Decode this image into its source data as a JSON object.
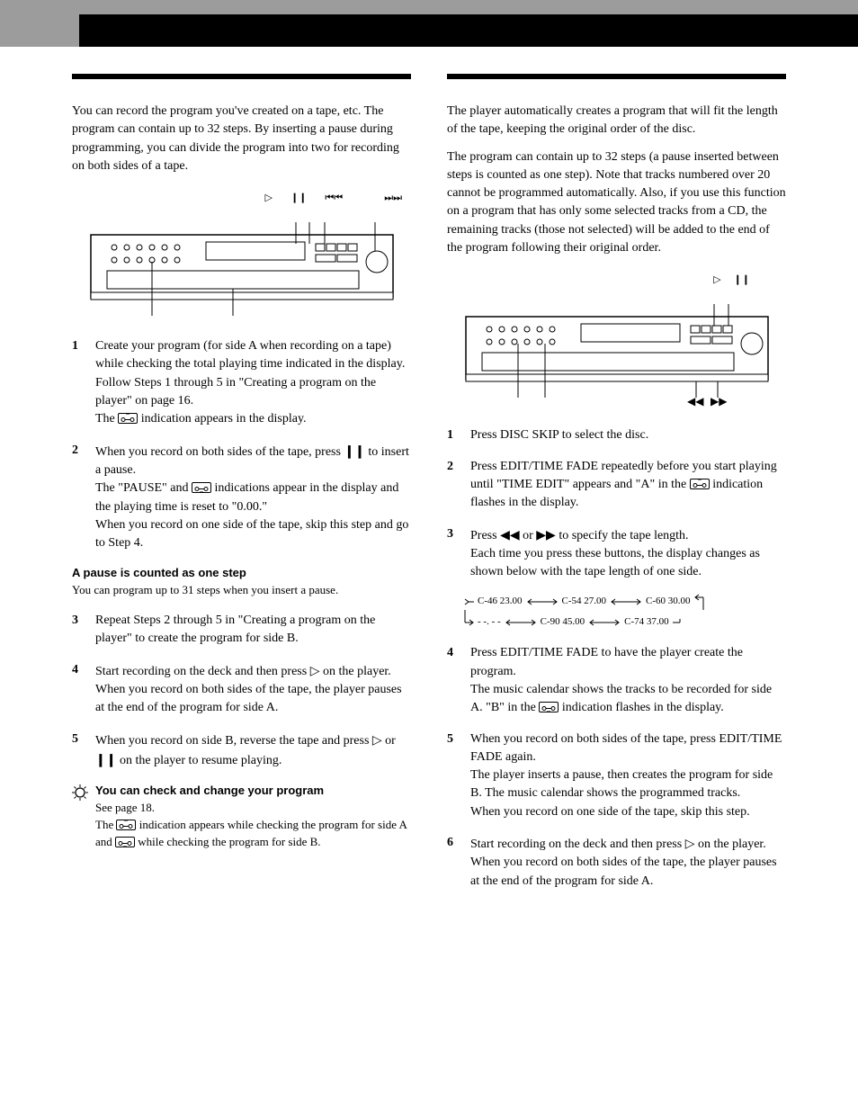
{
  "section_header_bg": "#000000",
  "left": {
    "intro": "You can record the program you've created on a tape, etc. The program can contain up to 32 steps.\nBy inserting a pause during programming, you can divide the program into two for recording on both sides of a tape.",
    "steps": [
      {
        "n": "1",
        "lines": [
          "Create your program (for side A when recording on a tape) while checking the total playing time indicated in the display.",
          "Follow Steps 1 through 5 in \"Creating a program on the player\" on page 16.",
          "The [TAPE_A] indication appears in the display."
        ]
      },
      {
        "n": "2",
        "lines": [
          "When you record on both sides of the tape, press [PAUSE] to insert a pause.",
          "The \"PAUSE\" and [TAPE_B] indications appear in the display and the playing time is reset to \"0.00.\"",
          "When you record on one side of the tape, skip this step and go to Step 4."
        ]
      },
      {
        "n": "",
        "note_head": "A pause is counted as one step",
        "note_body": "You can program up to 31 steps when you insert a pause."
      },
      {
        "n": "3",
        "lines": [
          "Repeat Steps 2 through 5 in \"Creating a program on the player\" to create the program for side B."
        ]
      },
      {
        "n": "4",
        "lines": [
          "Start recording on the deck and then press [PLAY] on the player.",
          "When you record on both sides of the tape, the player pauses at the end of the program for side A."
        ]
      },
      {
        "n": "5",
        "lines": [
          "When you record on side B, reverse the tape and press [PLAY] or [PAUSE] on the player to resume playing."
        ]
      }
    ],
    "tip_head": "You can check and change your program",
    "tip_lines": [
      "See page 18.",
      "The [TAPE_A] indication appears while checking the program for side A and [TAPE_B] while checking the program for side B."
    ]
  },
  "right": {
    "intro1": "The player automatically creates a program that will fit the length of the tape, keeping the original order of the disc.",
    "intro2": "The program can contain up to 32 steps (a pause inserted between steps is counted as one step).\nNote that tracks numbered over 20 cannot be programmed automatically. Also, if you use this function on a program that has only some selected tracks from a CD, the remaining tracks (those not selected) will be added to the end of  the program following their original order.",
    "steps": [
      {
        "n": "1",
        "lines": [
          "Press DISC SKIP to select the disc."
        ]
      },
      {
        "n": "2",
        "lines": [
          "Press EDIT/TIME FADE repeatedly before you start playing until \"TIME EDIT\" appears and \"A\" in the [TAPE_A] indication flashes in the display."
        ]
      },
      {
        "n": "3",
        "lines": [
          "Press [REW] or [FF] to specify the tape length.",
          "Each time you press these buttons, the display changes as shown below with the tape length of one side."
        ]
      },
      {
        "n": "4",
        "lines": [
          "Press EDIT/TIME FADE to have the player create the program.",
          "The music calendar shows the tracks to be recorded for side A. \"B\" in the [TAPE_B] indication flashes in the display."
        ]
      },
      {
        "n": "5",
        "lines": [
          "When you record on both sides of the tape, press EDIT/TIME FADE again.",
          "The player inserts a pause, then creates the program for side B. The music calendar shows the programmed tracks.",
          "When you record on one side of the tape, skip this step."
        ]
      },
      {
        "n": "6",
        "lines": [
          "Start recording on the deck and then press [PLAY] on the player.",
          "When you record on both sides of the tape, the player pauses at the end of the program for side A."
        ]
      }
    ],
    "tape_values": {
      "row1": [
        "C-46  23.00",
        "C-54  27.00",
        "C-60  30.00"
      ],
      "row2": [
        "- -. - -",
        "C-90  45.00",
        "C-74  37.00"
      ]
    }
  },
  "icons": {
    "play": "▷",
    "pause": "❙❙"
  }
}
